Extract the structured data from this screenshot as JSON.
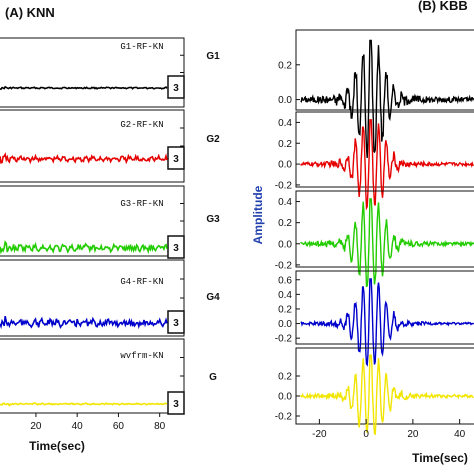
{
  "chart_data": [
    {
      "panel": "A",
      "title": "(A) KNN",
      "type": "line",
      "xlabel": "Time(sec)",
      "ylabel": "",
      "xlim": [
        5,
        85
      ],
      "xticks": [
        "20",
        "40",
        "60",
        "80"
      ],
      "box_label": "3",
      "traces": [
        {
          "name": "G1-RF-KN",
          "group": "G1",
          "color": "#000000",
          "amp": 0.12
        },
        {
          "name": "G2-RF-KN",
          "group": "G2",
          "color": "#e60000",
          "amp": 0.45
        },
        {
          "name": "G3-RF-KN",
          "group": "G3",
          "color": "#22cc00",
          "amp": 0.55
        },
        {
          "name": "G4-RF-KN",
          "group": "G4",
          "color": "#0000cc",
          "amp": 0.6
        },
        {
          "name": "wvfrm-KN",
          "group": "G",
          "color": "#f2e600",
          "amp": 0.12
        }
      ]
    },
    {
      "panel": "B",
      "title": "(B) KBB",
      "type": "line",
      "xlabel": "Time(sec)",
      "ylabel": "Amplitude",
      "xlim": [
        -30,
        47
      ],
      "xticks": [
        "-20",
        "0",
        "20",
        "40"
      ],
      "traces": [
        {
          "group": "G1",
          "color": "#000000",
          "ylim": [
            -0.06,
            0.4
          ],
          "yticks": [
            "0.0",
            "0.2"
          ]
        },
        {
          "group": "G2",
          "color": "#e60000",
          "ylim": [
            -0.22,
            0.5
          ],
          "yticks": [
            "-0.2",
            "0.0",
            "0.2",
            "0.4"
          ]
        },
        {
          "group": "G3",
          "color": "#22cc00",
          "ylim": [
            -0.22,
            0.5
          ],
          "yticks": [
            "-0.2",
            "0.0",
            "0.2",
            "0.4"
          ]
        },
        {
          "group": "G4",
          "color": "#0000cc",
          "ylim": [
            -0.28,
            0.72
          ],
          "yticks": [
            "-0.2",
            "0.0",
            "0.2",
            "0.4",
            "0.6"
          ]
        },
        {
          "group": "G",
          "color": "#f2e600",
          "ylim": [
            -0.28,
            0.48
          ],
          "yticks": [
            "-0.2",
            "0.0",
            "0.2"
          ]
        }
      ]
    }
  ]
}
